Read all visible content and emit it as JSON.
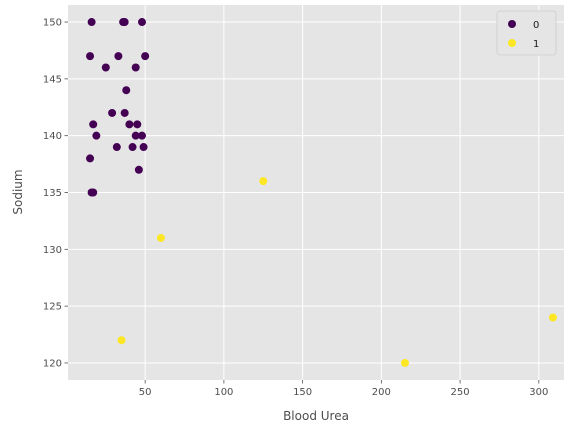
{
  "chart_data": {
    "type": "scatter",
    "title": "",
    "xlabel": "Blood Urea",
    "ylabel": "Sodium",
    "xlim": [
      1,
      316
    ],
    "ylim": [
      118.5,
      151.5
    ],
    "xticks": [
      50,
      100,
      150,
      200,
      250,
      300
    ],
    "yticks": [
      120,
      125,
      130,
      135,
      140,
      145,
      150
    ],
    "grid": true,
    "legend_position": "top-right",
    "series": [
      {
        "name": "0",
        "color": "#440154",
        "points": [
          [
            16,
            150
          ],
          [
            36,
            150
          ],
          [
            37,
            150
          ],
          [
            48,
            150
          ],
          [
            15,
            147
          ],
          [
            33,
            147
          ],
          [
            50,
            147
          ],
          [
            25,
            146
          ],
          [
            44,
            146
          ],
          [
            38,
            144
          ],
          [
            29,
            142
          ],
          [
            37,
            142
          ],
          [
            17,
            141
          ],
          [
            40,
            141
          ],
          [
            45,
            141
          ],
          [
            19,
            140
          ],
          [
            44,
            140
          ],
          [
            48,
            140
          ],
          [
            32,
            139
          ],
          [
            42,
            139
          ],
          [
            49,
            139
          ],
          [
            15,
            138
          ],
          [
            46,
            137
          ],
          [
            16,
            135
          ],
          [
            17,
            135
          ]
        ]
      },
      {
        "name": "1",
        "color": "#fde725",
        "points": [
          [
            125,
            136
          ],
          [
            60,
            131
          ],
          [
            309,
            124
          ],
          [
            35,
            122
          ],
          [
            215,
            120
          ]
        ]
      }
    ]
  }
}
